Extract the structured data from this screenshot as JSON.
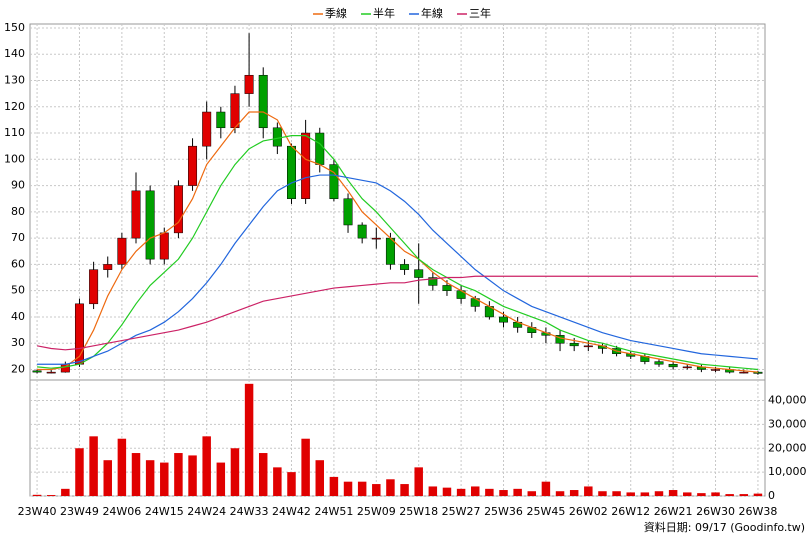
{
  "chart_data": [
    {
      "type": "candlestick",
      "categories": [
        "23W40",
        null,
        null,
        "23W49",
        null,
        null,
        "24W06",
        null,
        null,
        "24W15",
        null,
        null,
        "24W24",
        null,
        null,
        "24W33",
        null,
        null,
        "24W42",
        null,
        null,
        "24W51",
        null,
        null,
        "25W09",
        null,
        null,
        "25W18",
        null,
        null,
        "25W27",
        null,
        null,
        "25W36",
        null,
        null,
        "25W45",
        null,
        null,
        "26W02",
        null,
        null,
        "26W12",
        null,
        null,
        "26W21",
        null,
        null,
        "26W30",
        null,
        null,
        "26W38"
      ],
      "open": [
        19.5,
        19,
        19,
        22,
        45,
        58,
        60,
        70,
        88,
        62,
        72,
        90,
        105,
        118,
        112,
        125,
        132,
        112,
        105,
        85,
        110,
        98,
        85,
        75,
        70,
        70,
        60,
        58,
        55,
        52,
        50,
        47,
        44,
        40,
        38,
        36,
        34,
        33,
        30,
        29,
        29,
        28,
        26,
        25,
        23,
        22,
        21,
        21,
        20,
        20,
        19,
        19
      ],
      "high": [
        20,
        20,
        23,
        47,
        61,
        63,
        72,
        95,
        90,
        74,
        92,
        108,
        122,
        120,
        128,
        148,
        135,
        114,
        106,
        115,
        112,
        100,
        87,
        76,
        74,
        72,
        62,
        68,
        57,
        54,
        52,
        48,
        46,
        42,
        40,
        38,
        36,
        35,
        32,
        31,
        30,
        29,
        27,
        26,
        24,
        23,
        22,
        22,
        21,
        21,
        20,
        19.5
      ],
      "low": [
        18.5,
        18.5,
        18.8,
        21,
        43,
        55,
        58,
        68,
        60,
        60,
        70,
        88,
        100,
        108,
        110,
        120,
        108,
        102,
        83,
        83,
        95,
        84,
        72,
        68,
        66,
        58,
        56,
        45,
        50,
        48,
        45,
        42,
        39,
        36,
        34,
        32,
        30,
        27,
        27,
        27,
        26,
        25,
        24,
        22,
        21,
        20,
        20,
        19,
        19,
        18.5,
        18.5,
        18
      ],
      "close": [
        19,
        19,
        22,
        45,
        58,
        60,
        70,
        88,
        62,
        72,
        90,
        105,
        118,
        112,
        125,
        132,
        112,
        105,
        85,
        110,
        98,
        85,
        75,
        70,
        70,
        60,
        58,
        55,
        52,
        50,
        47,
        44,
        40,
        38,
        36,
        34,
        33,
        30,
        29,
        29,
        28,
        26,
        25,
        23,
        22,
        21,
        21,
        20,
        20,
        19,
        19,
        18.5
      ],
      "up_color": "#e00000",
      "down_color": "#00a000",
      "series": [
        {
          "name": "季線",
          "color": "#ee6a10",
          "values": [
            20,
            20,
            21,
            25,
            35,
            48,
            58,
            65,
            70,
            72,
            76,
            85,
            98,
            105,
            112,
            118,
            118,
            115,
            105,
            100,
            98,
            95,
            88,
            80,
            75,
            70,
            65,
            62,
            57,
            53,
            50,
            47,
            44,
            41,
            38,
            36,
            34,
            32,
            31,
            30,
            29,
            27,
            26,
            25,
            24,
            23,
            22,
            21,
            20.5,
            20,
            19.5,
            19
          ]
        },
        {
          "name": "半年",
          "color": "#22cc22",
          "values": [
            21,
            20.5,
            21,
            22,
            25,
            30,
            37,
            45,
            52,
            57,
            62,
            70,
            80,
            90,
            98,
            104,
            107,
            108,
            109,
            109,
            106,
            100,
            92,
            85,
            80,
            74,
            68,
            62,
            58,
            55,
            52,
            50,
            47,
            44,
            42,
            40,
            38,
            35,
            33,
            31,
            30,
            28.5,
            27,
            26,
            25,
            24,
            23,
            22,
            21.5,
            21,
            20.5,
            20
          ]
        },
        {
          "name": "年線",
          "color": "#2266dd",
          "values": [
            22,
            22,
            22,
            23,
            25,
            27,
            30,
            33,
            35,
            38,
            42,
            47,
            53,
            60,
            68,
            75,
            82,
            88,
            91,
            93,
            94,
            94,
            93,
            92,
            91,
            88,
            84,
            79,
            73,
            68,
            63,
            58,
            54,
            50,
            47,
            44,
            42,
            40,
            38,
            36,
            34,
            32.5,
            31,
            30,
            29,
            28,
            27,
            26,
            25.5,
            25,
            24.5,
            24
          ]
        },
        {
          "name": "三年",
          "color": "#cc2266",
          "values": [
            29,
            28,
            27.5,
            28,
            29,
            30,
            31,
            32,
            33,
            34,
            35,
            36.5,
            38,
            40,
            42,
            44,
            46,
            47,
            48,
            49,
            50,
            51,
            51.5,
            52,
            52.5,
            53,
            53,
            54,
            54.5,
            55,
            55,
            55.5,
            55.5,
            55.5,
            55.5,
            55.5,
            55.5,
            55.5,
            55.5,
            55.5,
            55.5,
            55.5,
            55.5,
            55.5,
            55.5,
            55.5,
            55.5,
            55.5,
            55.5,
            55.5,
            55.5,
            55.5
          ]
        }
      ],
      "ylim": [
        16,
        151.5
      ],
      "yticks": [
        20,
        30,
        40,
        50,
        60,
        70,
        80,
        90,
        100,
        110,
        120,
        130,
        140,
        150
      ],
      "grid": true
    },
    {
      "type": "bar",
      "values": [
        500,
        400,
        3000,
        20000,
        25000,
        15000,
        24000,
        18000,
        15000,
        14000,
        18000,
        17000,
        25000,
        14000,
        20000,
        47000,
        18000,
        12000,
        10000,
        24000,
        15000,
        8000,
        6000,
        6000,
        5000,
        7000,
        5000,
        12000,
        4000,
        3500,
        3000,
        4000,
        3000,
        2500,
        3000,
        2000,
        6000,
        2000,
        2500,
        4000,
        2000,
        2000,
        1500,
        1500,
        2000,
        2500,
        1500,
        1200,
        1500,
        800,
        800,
        1000
      ],
      "color": "#e00000",
      "ylim": [
        0,
        48600
      ],
      "yticks": [
        0,
        {
          "value": 10000,
          "label": "10,000"
        },
        {
          "value": 20000,
          "label": "20,000"
        },
        {
          "value": 30000,
          "label": "30,000"
        },
        {
          "value": 40000,
          "label": "40,000"
        }
      ],
      "note": "資料日期: 09/17 (Goodinfo.tw)"
    }
  ]
}
